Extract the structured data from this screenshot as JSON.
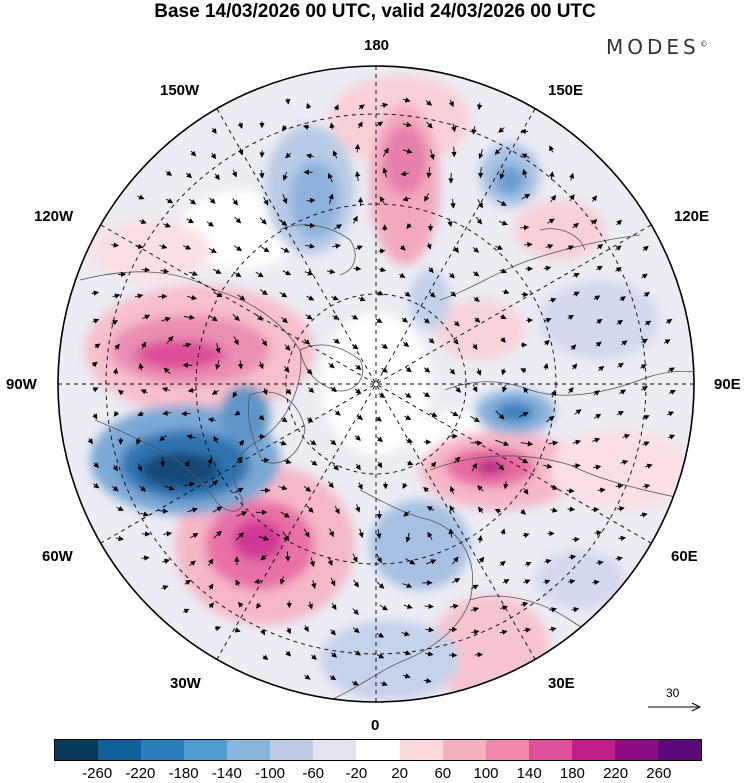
{
  "title": "Base 14/03/2026 00 UTC, valid 24/03/2026 00 UTC",
  "brand": "MODES",
  "brand_mark": "©",
  "longitude_labels": {
    "lon_180": "180",
    "lon_150w": "150W",
    "lon_150e": "150E",
    "lon_120w": "120W",
    "lon_120e": "120E",
    "lon_90w": "90W",
    "lon_90e": "90E",
    "lon_60w": "60W",
    "lon_60e": "60E",
    "lon_30w": "30W",
    "lon_30e": "30E",
    "lon_0": "0"
  },
  "reference_vector": "30",
  "colorbar": {
    "colors": [
      "#0b3a5c",
      "#11609a",
      "#2b7fbd",
      "#4f9bd0",
      "#86b5dd",
      "#bfcbe6",
      "#e4e4f1",
      "#ffffff",
      "#fbd8db",
      "#f6b0be",
      "#ef87ad",
      "#e0519c",
      "#c21e8a",
      "#8e0d85",
      "#5c0a7a"
    ],
    "ticks": [
      "-260",
      "-220",
      "-180",
      "-140",
      "-100",
      "-60",
      "-20",
      "20",
      "60",
      "100",
      "140",
      "180",
      "220",
      "260"
    ]
  }
}
